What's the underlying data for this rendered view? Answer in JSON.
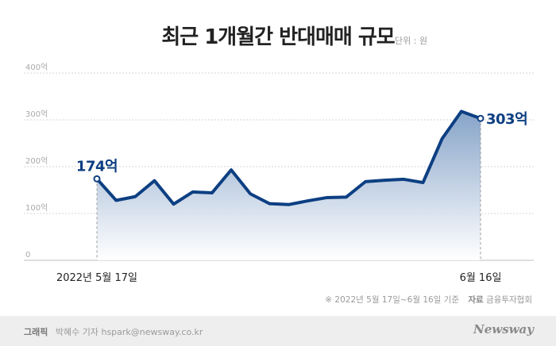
{
  "chart_data": {
    "type": "area",
    "title": "최근 1개월간 반대매매 규모",
    "unit_note": "단위 : 원",
    "ylim": [
      0,
      400
    ],
    "yticks": [
      {
        "value": 0,
        "label": "0"
      },
      {
        "value": 100,
        "label": "100억"
      },
      {
        "value": 200,
        "label": "200억"
      },
      {
        "value": 300,
        "label": "300억"
      },
      {
        "value": 400,
        "label": "400억"
      }
    ],
    "grid": true,
    "x_labels": [
      {
        "index": 0,
        "label": "2022년 5월 17일"
      },
      {
        "index": 20,
        "label": "6월 16일"
      }
    ],
    "values": [
      174,
      128,
      136,
      170,
      120,
      146,
      144,
      193,
      142,
      121,
      119,
      127,
      134,
      135,
      168,
      171,
      173,
      166,
      260,
      318,
      303
    ],
    "annotations": [
      {
        "index": 0,
        "label": "174억"
      },
      {
        "index": 20,
        "label": "303억"
      }
    ],
    "colors": {
      "line": "#0d3f82",
      "fill_top": "#7f9ec5",
      "fill_bottom": "#ffffff"
    }
  },
  "footer": {
    "period_note": "※  2022년 5월 17일~6월 16일 기준",
    "source_label": "자료",
    "source_value": "금융투자협회",
    "credit_label": "그래픽",
    "credit_value": "박혜수 기자 hspark@newsway.co.kr",
    "brand": "Newsway"
  }
}
